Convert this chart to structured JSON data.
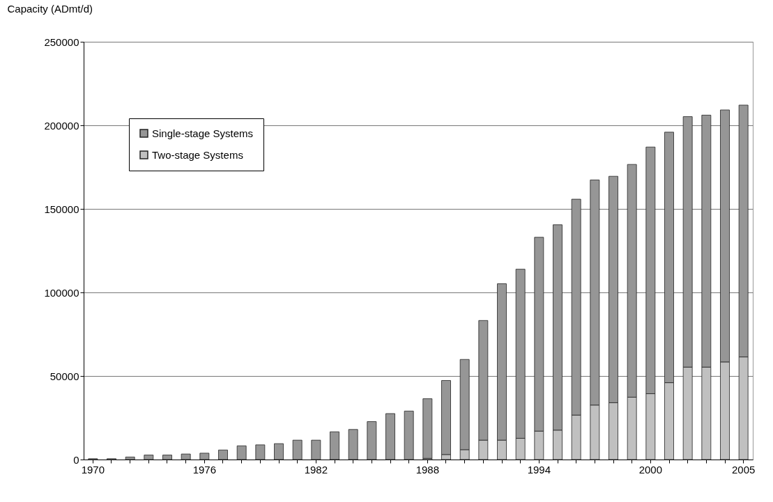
{
  "chart_data": {
    "type": "bar",
    "stacked": true,
    "ylabel": "Capacity (ADmt/d)",
    "categories": [
      "1970",
      null,
      null,
      null,
      null,
      null,
      "1976",
      null,
      null,
      null,
      null,
      null,
      "1982",
      null,
      null,
      null,
      null,
      null,
      "1988",
      null,
      null,
      null,
      null,
      null,
      "1994",
      null,
      null,
      null,
      null,
      null,
      "2000",
      null,
      null,
      null,
      null,
      "2005"
    ],
    "series": [
      {
        "name": "Two-stage Systems",
        "color": "#c0c0c0",
        "values": [
          null,
          null,
          null,
          null,
          null,
          null,
          null,
          null,
          null,
          null,
          null,
          null,
          null,
          null,
          null,
          null,
          null,
          null,
          700,
          3000,
          5900,
          11600,
          11600,
          12700,
          17000,
          17600,
          26600,
          32600,
          34000,
          37300,
          39400,
          46000,
          55300,
          55300,
          58400,
          61400
        ]
      },
      {
        "name": "Single-stage Systems",
        "color": "#969696",
        "values": [
          500,
          500,
          1500,
          2700,
          2700,
          3300,
          3800,
          5700,
          8200,
          8800,
          9500,
          11600,
          11600,
          16600,
          18000,
          22700,
          27500,
          29000,
          35700,
          44300,
          54000,
          71600,
          93600,
          101200,
          116000,
          122900,
          129200,
          134700,
          135500,
          139300,
          147600,
          149900,
          149900,
          150800,
          150800,
          150700
        ]
      }
    ],
    "ylim": [
      0,
      250000
    ],
    "yticks": [
      0,
      50000,
      100000,
      150000,
      200000,
      250000
    ],
    "grid": "y",
    "legend": "top left"
  }
}
